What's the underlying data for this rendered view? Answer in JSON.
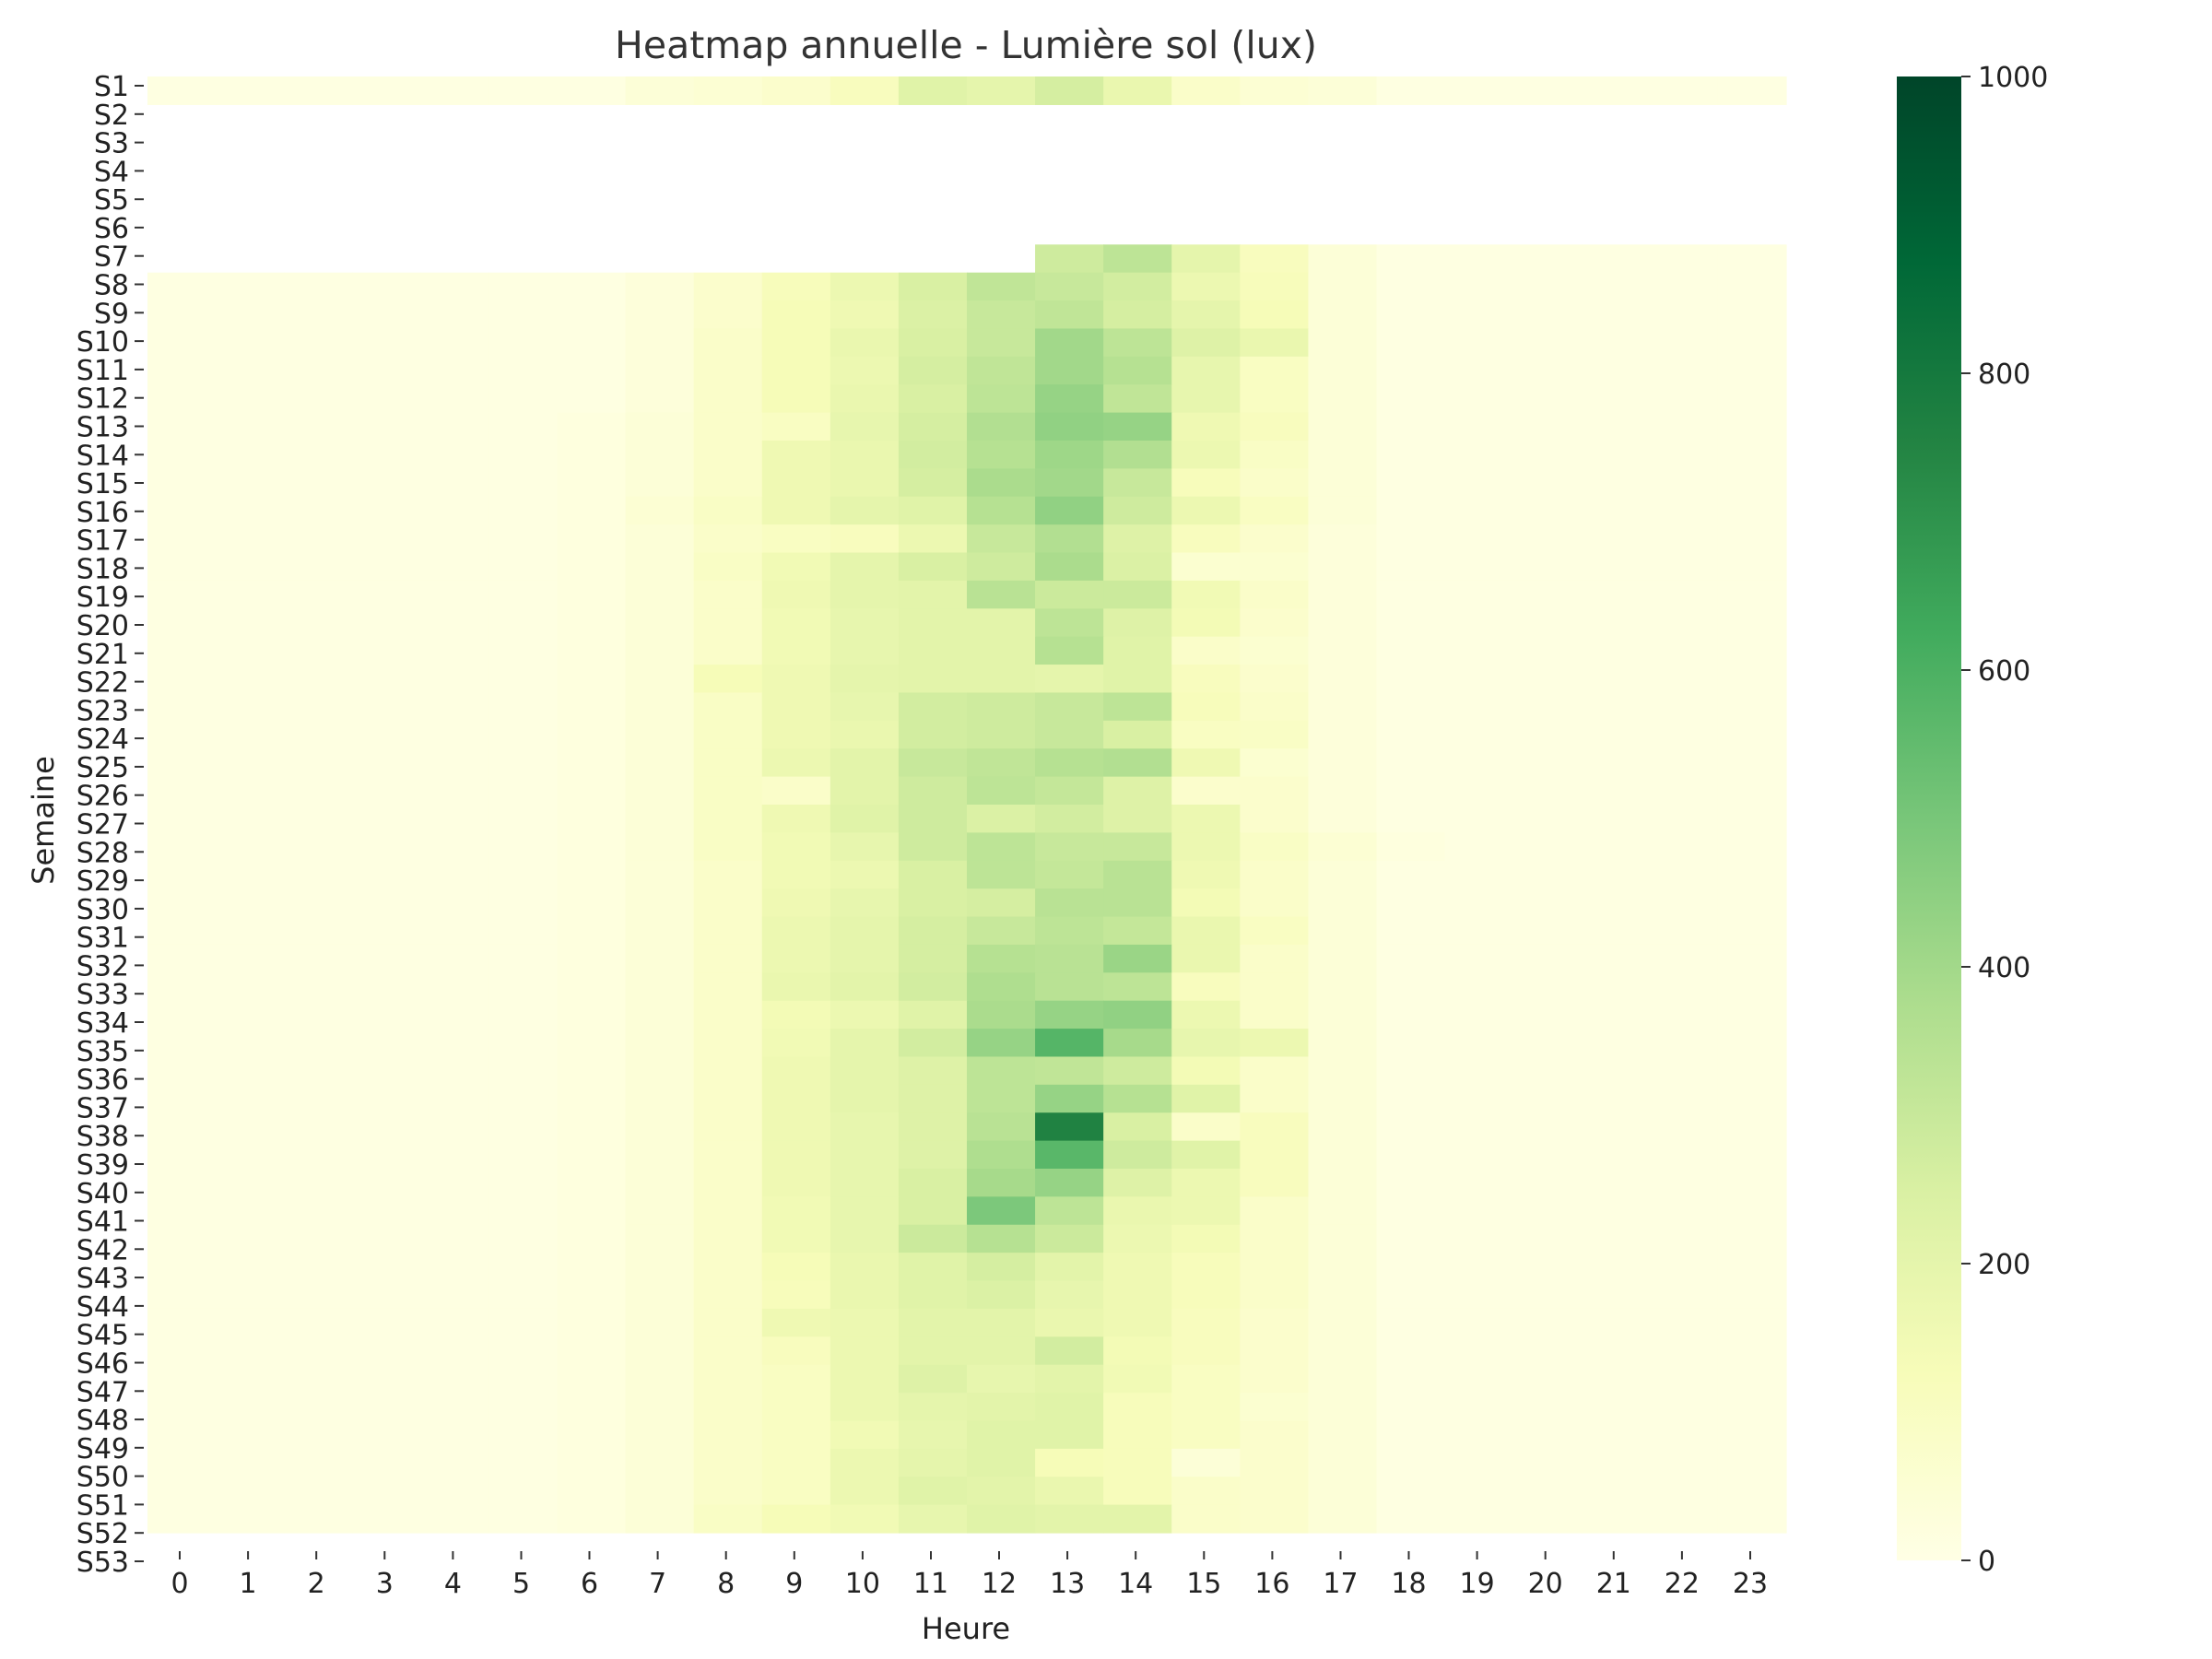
{
  "chart_data": {
    "type": "heatmap",
    "title": "Heatmap annuelle - Lumière sol (lux)",
    "xlabel": "Heure",
    "ylabel": "Semaine",
    "x_categories": [
      "0",
      "1",
      "2",
      "3",
      "4",
      "5",
      "6",
      "7",
      "8",
      "9",
      "10",
      "11",
      "12",
      "13",
      "14",
      "15",
      "16",
      "17",
      "18",
      "19",
      "20",
      "21",
      "22",
      "23"
    ],
    "y_categories": [
      "S1",
      "S2",
      "S3",
      "S4",
      "S5",
      "S6",
      "S7",
      "S8",
      "S9",
      "S10",
      "S11",
      "S12",
      "S13",
      "S14",
      "S15",
      "S16",
      "S17",
      "S18",
      "S19",
      "S20",
      "S21",
      "S22",
      "S23",
      "S24",
      "S25",
      "S26",
      "S27",
      "S28",
      "S29",
      "S30",
      "S31",
      "S32",
      "S33",
      "S34",
      "S35",
      "S36",
      "S37",
      "S38",
      "S39",
      "S40",
      "S41",
      "S42",
      "S43",
      "S44",
      "S45",
      "S46",
      "S47",
      "S48",
      "S49",
      "S50",
      "S51",
      "S52",
      "S53"
    ],
    "colorscale": "YlGn",
    "colorbar": {
      "min": 0,
      "max": 1000,
      "ticks": [
        0,
        200,
        400,
        600,
        800,
        1000
      ]
    },
    "missing_rows": [
      "S2",
      "S3",
      "S4",
      "S5",
      "S6",
      "S53"
    ],
    "missing_note": "S7 has data only from hour 13 onward",
    "values": [
      [
        10,
        10,
        10,
        10,
        10,
        10,
        10,
        40,
        50,
        70,
        110,
        220,
        200,
        260,
        180,
        80,
        50,
        40,
        10,
        10,
        10,
        10,
        10,
        10
      ],
      [],
      [],
      [],
      [],
      [],
      [
        null,
        null,
        null,
        null,
        null,
        null,
        null,
        null,
        null,
        null,
        null,
        null,
        null,
        280,
        330,
        200,
        110,
        40,
        10,
        10,
        10,
        10,
        10,
        10
      ],
      [
        10,
        10,
        10,
        10,
        10,
        10,
        10,
        30,
        70,
        120,
        170,
        250,
        320,
        300,
        270,
        170,
        120,
        40,
        10,
        10,
        10,
        10,
        10,
        10
      ],
      [
        10,
        10,
        10,
        10,
        10,
        10,
        10,
        30,
        70,
        130,
        160,
        240,
        300,
        320,
        260,
        200,
        130,
        40,
        10,
        10,
        10,
        10,
        10,
        10
      ],
      [
        10,
        10,
        10,
        10,
        10,
        10,
        10,
        30,
        80,
        130,
        180,
        250,
        300,
        400,
        330,
        230,
        180,
        40,
        10,
        10,
        10,
        10,
        10,
        10
      ],
      [
        10,
        10,
        10,
        10,
        10,
        10,
        10,
        30,
        80,
        130,
        170,
        260,
        320,
        400,
        350,
        190,
        100,
        40,
        10,
        10,
        10,
        10,
        10,
        10
      ],
      [
        10,
        10,
        10,
        10,
        10,
        10,
        10,
        30,
        80,
        130,
        180,
        250,
        330,
        430,
        320,
        190,
        100,
        40,
        10,
        10,
        10,
        10,
        10,
        10
      ],
      [
        10,
        10,
        10,
        10,
        10,
        10,
        20,
        40,
        80,
        100,
        190,
        260,
        360,
        440,
        430,
        160,
        110,
        40,
        10,
        10,
        10,
        10,
        10,
        10
      ],
      [
        10,
        10,
        10,
        10,
        10,
        10,
        20,
        40,
        80,
        160,
        180,
        270,
        350,
        410,
        360,
        170,
        90,
        40,
        10,
        10,
        10,
        10,
        10,
        10
      ],
      [
        10,
        10,
        10,
        10,
        10,
        10,
        20,
        40,
        80,
        160,
        180,
        260,
        380,
        400,
        300,
        120,
        80,
        40,
        10,
        10,
        10,
        10,
        10,
        10
      ],
      [
        10,
        10,
        10,
        10,
        10,
        10,
        20,
        50,
        90,
        160,
        200,
        220,
        350,
        440,
        280,
        170,
        100,
        40,
        10,
        10,
        10,
        10,
        10,
        10
      ],
      [
        10,
        10,
        10,
        10,
        10,
        10,
        20,
        40,
        80,
        100,
        110,
        170,
        300,
        360,
        230,
        110,
        70,
        30,
        10,
        10,
        10,
        10,
        10,
        10
      ],
      [
        10,
        10,
        10,
        10,
        10,
        10,
        20,
        40,
        90,
        150,
        200,
        250,
        280,
        380,
        240,
        60,
        60,
        30,
        10,
        10,
        10,
        10,
        10,
        10
      ],
      [
        10,
        10,
        10,
        10,
        10,
        10,
        20,
        40,
        80,
        160,
        200,
        210,
        340,
        290,
        290,
        150,
        80,
        30,
        10,
        10,
        10,
        10,
        10,
        10
      ],
      [
        10,
        10,
        10,
        10,
        10,
        10,
        20,
        40,
        80,
        150,
        190,
        210,
        210,
        330,
        230,
        140,
        70,
        30,
        10,
        10,
        10,
        10,
        10,
        10
      ],
      [
        10,
        10,
        10,
        10,
        10,
        10,
        20,
        40,
        80,
        150,
        190,
        210,
        210,
        350,
        220,
        80,
        60,
        30,
        10,
        10,
        10,
        10,
        10,
        10
      ],
      [
        10,
        10,
        10,
        10,
        10,
        10,
        20,
        40,
        130,
        160,
        200,
        210,
        210,
        200,
        220,
        110,
        70,
        30,
        10,
        10,
        10,
        10,
        10,
        10
      ],
      [
        10,
        10,
        10,
        10,
        10,
        10,
        20,
        40,
        90,
        160,
        190,
        270,
        280,
        300,
        330,
        120,
        80,
        30,
        10,
        10,
        10,
        10,
        10,
        10
      ],
      [
        10,
        10,
        10,
        10,
        10,
        10,
        20,
        40,
        90,
        160,
        180,
        270,
        280,
        300,
        250,
        100,
        90,
        30,
        10,
        10,
        10,
        10,
        10,
        10
      ],
      [
        10,
        10,
        10,
        10,
        10,
        10,
        20,
        40,
        90,
        170,
        210,
        300,
        320,
        350,
        360,
        160,
        60,
        30,
        10,
        10,
        10,
        10,
        10,
        10
      ],
      [
        10,
        10,
        10,
        10,
        10,
        10,
        20,
        40,
        90,
        80,
        210,
        280,
        330,
        310,
        230,
        70,
        70,
        30,
        10,
        10,
        10,
        10,
        10,
        10
      ],
      [
        10,
        10,
        10,
        10,
        10,
        10,
        20,
        40,
        90,
        160,
        220,
        280,
        240,
        270,
        230,
        170,
        70,
        30,
        10,
        10,
        10,
        10,
        10,
        10
      ],
      [
        10,
        10,
        10,
        10,
        10,
        10,
        20,
        40,
        90,
        150,
        190,
        280,
        330,
        300,
        300,
        170,
        90,
        50,
        20,
        10,
        10,
        10,
        10,
        10
      ],
      [
        10,
        10,
        10,
        10,
        10,
        10,
        20,
        40,
        80,
        150,
        170,
        250,
        330,
        310,
        340,
        160,
        80,
        40,
        10,
        10,
        10,
        10,
        10,
        10
      ],
      [
        10,
        10,
        10,
        10,
        10,
        10,
        20,
        40,
        80,
        160,
        190,
        250,
        260,
        340,
        340,
        140,
        80,
        40,
        10,
        10,
        10,
        10,
        10,
        10
      ],
      [
        10,
        10,
        10,
        10,
        10,
        10,
        20,
        40,
        80,
        170,
        200,
        260,
        300,
        330,
        310,
        180,
        100,
        40,
        10,
        10,
        10,
        10,
        10,
        10
      ],
      [
        10,
        10,
        10,
        10,
        10,
        10,
        20,
        40,
        80,
        170,
        200,
        260,
        350,
        340,
        420,
        180,
        80,
        40,
        10,
        10,
        10,
        10,
        10,
        10
      ],
      [
        10,
        10,
        10,
        10,
        10,
        10,
        20,
        40,
        80,
        180,
        210,
        270,
        370,
        340,
        330,
        110,
        80,
        40,
        10,
        10,
        10,
        10,
        10,
        10
      ],
      [
        10,
        10,
        10,
        10,
        10,
        10,
        20,
        40,
        80,
        140,
        170,
        220,
        380,
        430,
        440,
        170,
        80,
        40,
        10,
        10,
        10,
        10,
        10,
        10
      ],
      [
        10,
        10,
        10,
        10,
        10,
        10,
        20,
        40,
        80,
        150,
        200,
        270,
        430,
        580,
        390,
        190,
        170,
        40,
        10,
        10,
        10,
        10,
        10,
        10
      ],
      [
        10,
        10,
        10,
        10,
        10,
        10,
        20,
        40,
        80,
        160,
        200,
        230,
        330,
        320,
        280,
        140,
        80,
        40,
        10,
        10,
        10,
        10,
        10,
        10
      ],
      [
        10,
        10,
        10,
        10,
        10,
        10,
        20,
        40,
        80,
        160,
        200,
        230,
        330,
        430,
        350,
        220,
        80,
        40,
        10,
        10,
        10,
        10,
        10,
        10
      ],
      [
        10,
        10,
        10,
        10,
        10,
        10,
        20,
        40,
        80,
        160,
        190,
        230,
        340,
        760,
        250,
        80,
        110,
        40,
        10,
        10,
        10,
        10,
        10,
        10
      ],
      [
        10,
        10,
        10,
        10,
        10,
        10,
        20,
        40,
        80,
        160,
        190,
        230,
        370,
        570,
        280,
        220,
        110,
        40,
        10,
        10,
        10,
        10,
        10,
        10
      ],
      [
        10,
        10,
        10,
        10,
        10,
        10,
        20,
        40,
        80,
        160,
        190,
        250,
        390,
        430,
        230,
        170,
        110,
        40,
        10,
        10,
        10,
        10,
        10,
        10
      ],
      [
        10,
        10,
        10,
        10,
        10,
        10,
        20,
        40,
        80,
        150,
        190,
        250,
        490,
        330,
        180,
        170,
        80,
        40,
        10,
        10,
        10,
        10,
        10,
        10
      ],
      [
        10,
        10,
        10,
        10,
        10,
        10,
        20,
        40,
        80,
        150,
        190,
        290,
        350,
        290,
        170,
        140,
        80,
        40,
        10,
        10,
        10,
        10,
        10,
        10
      ],
      [
        10,
        10,
        10,
        10,
        10,
        10,
        20,
        40,
        80,
        130,
        180,
        220,
        260,
        210,
        160,
        120,
        80,
        40,
        10,
        10,
        10,
        10,
        10,
        10
      ],
      [
        10,
        10,
        10,
        10,
        10,
        10,
        20,
        40,
        80,
        120,
        180,
        220,
        240,
        190,
        160,
        120,
        80,
        40,
        10,
        10,
        10,
        10,
        10,
        10
      ],
      [
        10,
        10,
        10,
        10,
        10,
        10,
        20,
        40,
        80,
        160,
        170,
        210,
        210,
        180,
        160,
        110,
        70,
        40,
        10,
        10,
        10,
        10,
        10,
        10
      ],
      [
        10,
        10,
        10,
        10,
        10,
        10,
        20,
        40,
        80,
        110,
        170,
        210,
        210,
        270,
        140,
        110,
        70,
        40,
        10,
        10,
        10,
        10,
        10,
        10
      ],
      [
        10,
        10,
        10,
        10,
        10,
        10,
        20,
        40,
        80,
        100,
        170,
        230,
        190,
        210,
        150,
        100,
        70,
        40,
        10,
        10,
        10,
        10,
        10,
        10
      ],
      [
        10,
        10,
        10,
        10,
        10,
        10,
        20,
        40,
        80,
        100,
        170,
        200,
        210,
        220,
        120,
        100,
        60,
        40,
        10,
        10,
        10,
        10,
        10,
        10
      ],
      [
        10,
        10,
        10,
        10,
        10,
        10,
        20,
        40,
        80,
        100,
        150,
        190,
        220,
        220,
        120,
        100,
        70,
        40,
        10,
        10,
        10,
        10,
        10,
        10
      ],
      [
        10,
        10,
        10,
        10,
        10,
        10,
        20,
        40,
        80,
        100,
        170,
        200,
        220,
        130,
        120,
        40,
        70,
        40,
        10,
        10,
        10,
        10,
        10,
        10
      ],
      [
        10,
        10,
        10,
        10,
        10,
        10,
        20,
        40,
        80,
        100,
        170,
        220,
        210,
        180,
        120,
        80,
        70,
        40,
        10,
        10,
        10,
        10,
        10,
        10
      ],
      [
        10,
        10,
        10,
        10,
        10,
        10,
        20,
        40,
        90,
        130,
        150,
        190,
        220,
        210,
        210,
        80,
        70,
        40,
        10,
        10,
        10,
        10,
        10,
        10
      ],
      []
    ]
  }
}
